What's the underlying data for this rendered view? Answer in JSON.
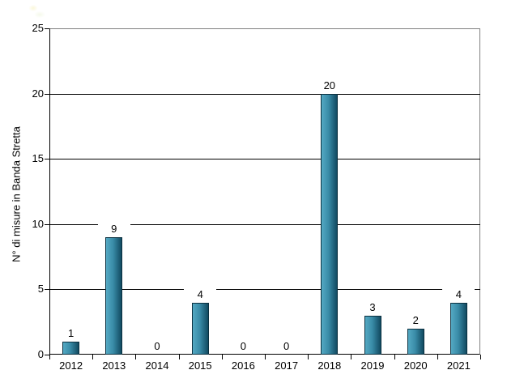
{
  "chart_data": {
    "type": "bar",
    "title": "",
    "xlabel": "",
    "ylabel": "N° di misure in Banda Stretta",
    "categories": [
      "2012",
      "2013",
      "2014",
      "2015",
      "2016",
      "2017",
      "2018",
      "2019",
      "2020",
      "2021"
    ],
    "values": [
      1,
      9,
      0,
      4,
      0,
      0,
      20,
      3,
      2,
      4
    ],
    "data_labels": [
      "1",
      "9",
      "0",
      "4",
      "0",
      "0",
      "20",
      "3",
      "2",
      "4"
    ],
    "ylim": [
      0,
      25
    ],
    "yticks": [
      0,
      5,
      10,
      15,
      20,
      25
    ],
    "grid": "horizontal-black-lines",
    "legend": "none",
    "colors": {
      "bar_gradient_left": "#54A9C3",
      "bar_gradient_mid": "#3A8CA8",
      "bar_gradient_right": "#114A61",
      "bar_border": "#0B3040",
      "gridline": "#000000",
      "plot_border": "#808080",
      "axis": "#000000",
      "text": "#000000",
      "background": "#FFFFFF"
    }
  }
}
